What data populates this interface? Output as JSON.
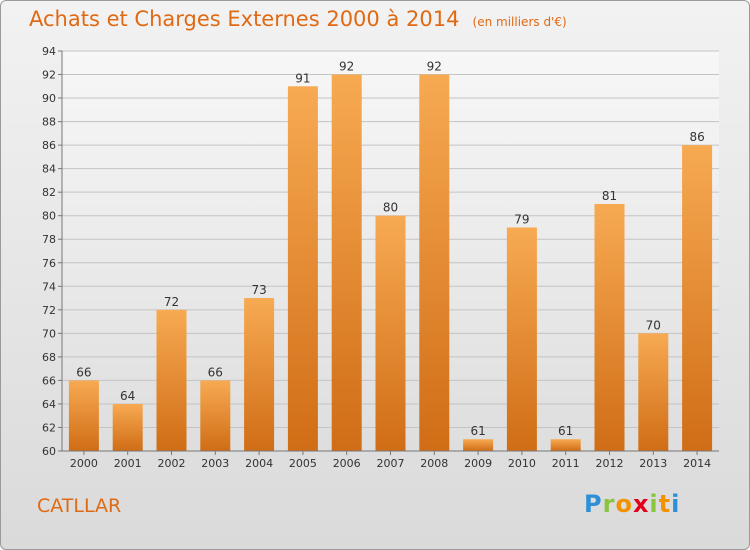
{
  "title": "Achats et Charges Externes 2000 à 2014",
  "unit": "(en milliers d'€)",
  "commune": "CATLLAR",
  "brand": {
    "letters": [
      "P",
      "r",
      "o",
      "x",
      "i",
      "t",
      "i"
    ],
    "colors": [
      "#2f8fd6",
      "#8bc53f",
      "#f39200",
      "#e2001a",
      "#8bc53f",
      "#f39200",
      "#2f8fd6"
    ]
  },
  "colors": {
    "bar_light": "#f7aa52",
    "bar_dark": "#d06d16",
    "accent": "#e06a14"
  },
  "chart_data": {
    "type": "bar",
    "categories": [
      "2000",
      "2001",
      "2002",
      "2003",
      "2004",
      "2005",
      "2006",
      "2007",
      "2008",
      "2009",
      "2010",
      "2011",
      "2012",
      "2013",
      "2014"
    ],
    "values": [
      66,
      64,
      72,
      66,
      73,
      91,
      92,
      80,
      92,
      61,
      79,
      61,
      81,
      70,
      86
    ],
    "ylim": [
      60,
      94
    ],
    "yticks": [
      60,
      62,
      64,
      66,
      68,
      70,
      72,
      74,
      76,
      78,
      80,
      82,
      84,
      86,
      88,
      90,
      92,
      94
    ],
    "grid": true
  }
}
